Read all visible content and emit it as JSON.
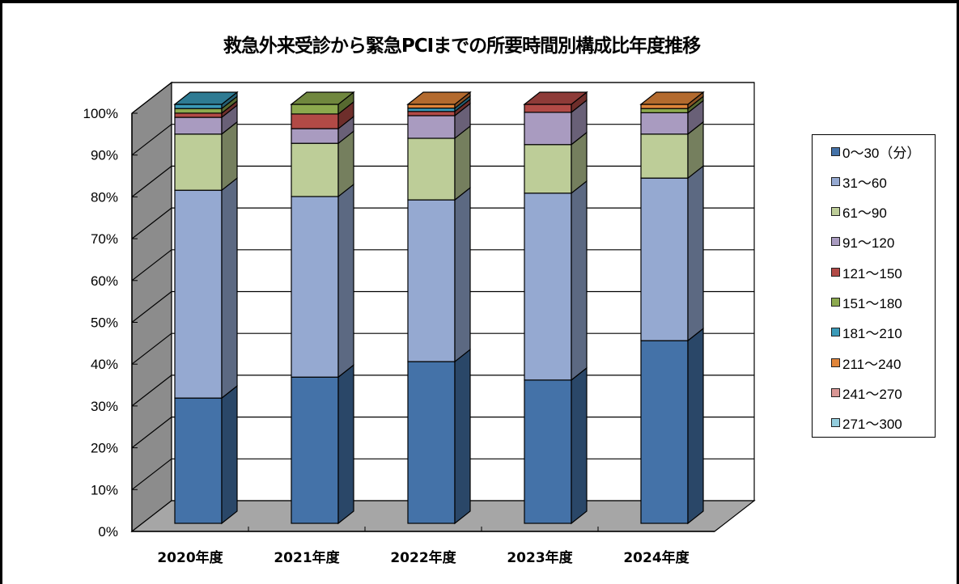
{
  "chart_data": {
    "type": "bar",
    "stacked": true,
    "percent": true,
    "three_d": true,
    "title": "救急外来受診から緊急PCIまでの所要時間別構成比年度推移",
    "xlabel": "",
    "ylabel": "",
    "ylim": [
      0,
      100
    ],
    "yticks": [
      "0%",
      "10%",
      "20%",
      "30%",
      "40%",
      "50%",
      "60%",
      "70%",
      "80%",
      "90%",
      "100%"
    ],
    "grid": true,
    "legend_position": "right",
    "categories": [
      "2020年度",
      "2021年度",
      "2022年度",
      "2023年度",
      "2024年度"
    ],
    "series": [
      {
        "name": "0～30（分）",
        "color": "#4472A8",
        "values": [
          29.9,
          34.9,
          38.6,
          34.2,
          43.6
        ]
      },
      {
        "name": "31～60",
        "color": "#95A9D1",
        "values": [
          49.6,
          43.1,
          38.6,
          44.6,
          38.8
        ]
      },
      {
        "name": "61～90",
        "color": "#BDCD98",
        "values": [
          13.4,
          12.7,
          14.7,
          11.6,
          10.5
        ]
      },
      {
        "name": "91～120",
        "color": "#A99BC0",
        "values": [
          4.0,
          3.5,
          5.4,
          7.7,
          5.1
        ]
      },
      {
        "name": "121～150",
        "color": "#B24A46",
        "values": [
          1.0,
          3.5,
          1.0,
          1.9,
          0
        ]
      },
      {
        "name": "151～180",
        "color": "#8CA94E",
        "values": [
          1.1,
          2.3,
          0,
          0,
          1.0
        ]
      },
      {
        "name": "181～210",
        "color": "#3A9AB8",
        "values": [
          1.0,
          0,
          0.8,
          0,
          0
        ]
      },
      {
        "name": "211～240",
        "color": "#E0853A",
        "values": [
          0,
          0,
          0.9,
          0,
          1.0
        ]
      },
      {
        "name": "241～270",
        "color": "#D99694",
        "values": [
          0,
          0,
          0,
          0,
          0
        ]
      },
      {
        "name": "271～300",
        "color": "#93CDDD",
        "values": [
          0,
          0,
          0,
          0,
          0
        ]
      }
    ]
  },
  "colors": {
    "wall": "#ffffff",
    "side_wall": "#8c8c8c",
    "floor": "#a6a6a6",
    "grid": "#000000"
  }
}
